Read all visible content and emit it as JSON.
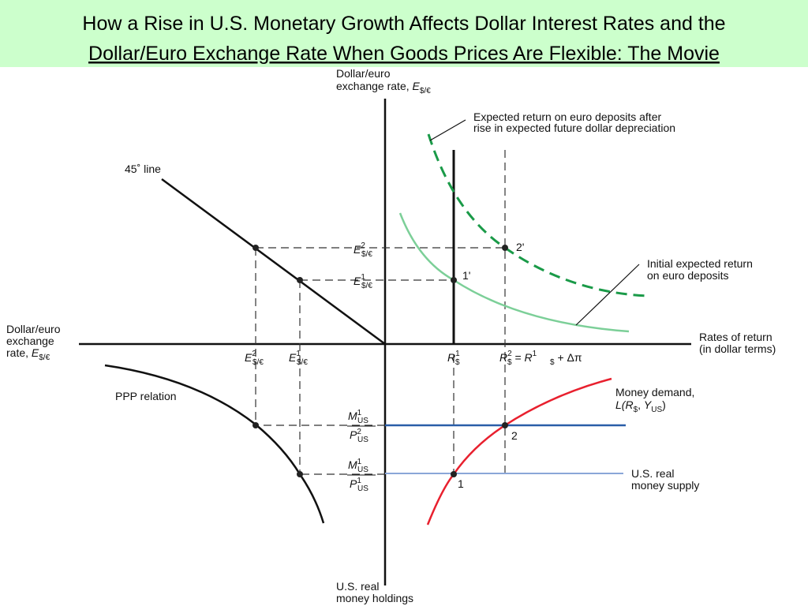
{
  "header": {
    "title": {
      "line1": "How a Rise in U.S. Monetary Growth Affects Dollar Interest Rates and the",
      "line2": "Dollar/Euro Exchange Rate When Goods Prices Are Flexible: The Movie"
    }
  },
  "diagram": {
    "vertical_axis_top": {
      "line1": "Dollar/euro",
      "line2": "exchange rate, ",
      "symbol": "E",
      "subscript": "$/€"
    },
    "horizontal_axis_right": {
      "line1": "Rates of return",
      "line2": "(in dollar terms)"
    },
    "horizontal_axis_left": {
      "line1": "Dollar/euro",
      "line2": "exchange",
      "line3": "rate, ",
      "symbol": "E",
      "subscript": "$/€"
    },
    "vertical_axis_bottom": {
      "line1": "U.S. real",
      "line2": "money holdings"
    },
    "curves": {
      "new_euro_return": {
        "line1": "Expected return on euro deposits after",
        "line2": "rise in expected future dollar depreciation"
      },
      "initial_euro_return": {
        "line1": "Initial expected return",
        "line2": "on euro deposits"
      },
      "line_45": "45˚ line",
      "ppp": "PPP relation",
      "money_demand": {
        "line1": "Money demand,",
        "line2": {
          "open": "L(",
          "r": "R",
          "r_sub": "$",
          "comma": ", ",
          "y": "Y",
          "y_sub": "US",
          "close": ")"
        }
      },
      "money_supply": {
        "line1": "U.S. real",
        "line2": "money supply"
      }
    },
    "points": {
      "p1_prime": "1'",
      "p2_prime": "2'",
      "p1": "1",
      "p2": "2"
    },
    "vertical_labels": {
      "e2": {
        "symbol": "E",
        "sup": "2",
        "sub": "$/€"
      },
      "e1": {
        "symbol": "E",
        "sup": "1",
        "sub": "$/€"
      }
    },
    "horizontal_labels": {
      "e2": {
        "symbol": "E",
        "sup": "2",
        "sub": "$/€"
      },
      "e1": {
        "symbol": "E",
        "sup": "1",
        "sub": "$/€"
      },
      "r1": {
        "symbol": "R",
        "sup": "1",
        "sub": "$"
      },
      "r2": {
        "symbol": "R",
        "sup": "2",
        "sub": "$",
        "eq": " = ",
        "symbol2": "R",
        "sup2": "1",
        "sub2": "$",
        "plus": " + Δπ"
      }
    },
    "money_labels": {
      "m2": {
        "num": "M",
        "num_sup": "1",
        "num_sub": "US",
        "den": "P",
        "den_sup": "2",
        "den_sub": "US"
      },
      "m1": {
        "num": "M",
        "num_sup": "1",
        "num_sub": "US",
        "den": "P",
        "den_sup": "1",
        "den_sub": "US"
      }
    }
  }
}
